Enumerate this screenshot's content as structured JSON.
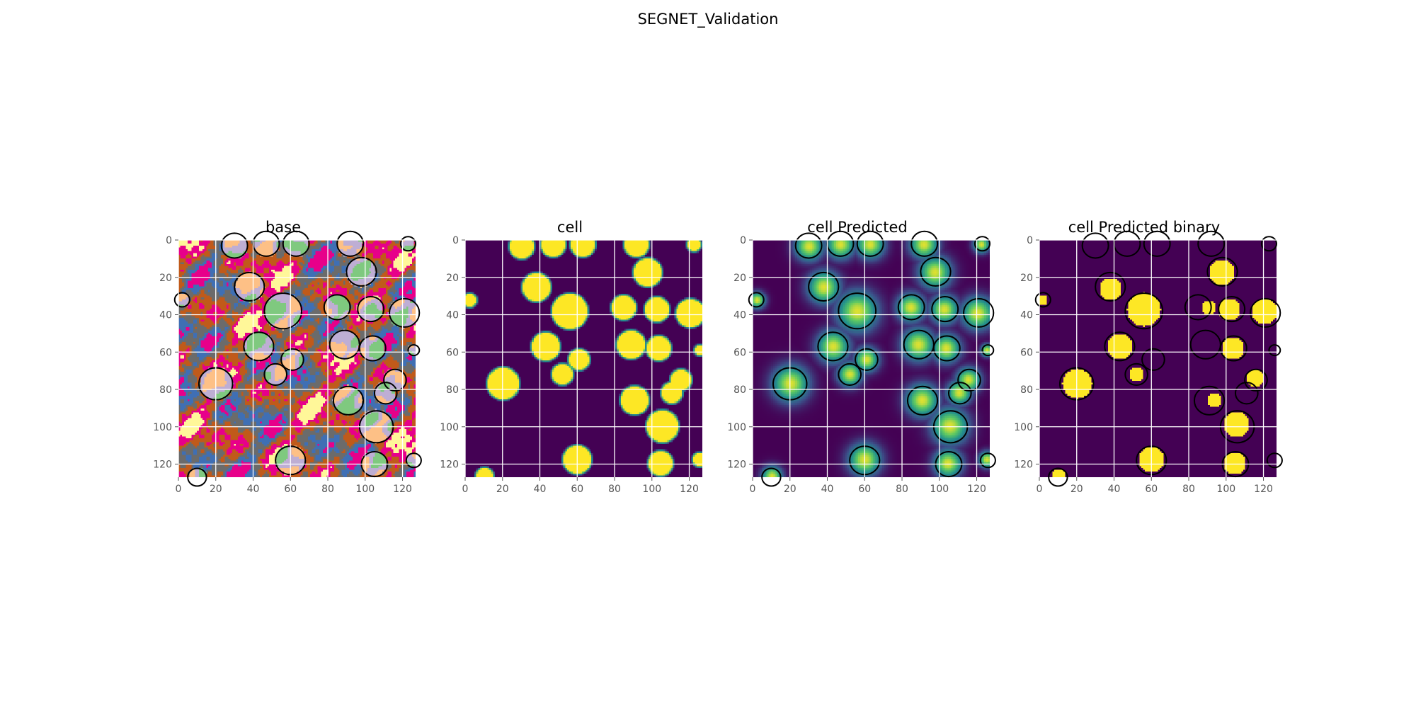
{
  "figure": {
    "title": "SEGNET_Validation"
  },
  "chart_data": [
    {
      "type": "heatmap",
      "title": "base",
      "colormap": "categorical",
      "xlim": [
        0,
        127
      ],
      "ylim": [
        127,
        0
      ],
      "xticks": [
        0,
        20,
        40,
        60,
        80,
        100,
        120
      ],
      "yticks": [
        0,
        20,
        40,
        60,
        80,
        100,
        120
      ],
      "grid": true,
      "contours": true,
      "palette": [
        "#e7008a",
        "#c05a1a",
        "#6b6b6b",
        "#3f6fb4",
        "#fff799",
        "#fdc086",
        "#beaed4",
        "#7fc97f"
      ]
    },
    {
      "type": "heatmap",
      "title": "cell",
      "colormap": "viridis",
      "xlim": [
        0,
        127
      ],
      "ylim": [
        127,
        0
      ],
      "xticks": [
        0,
        20,
        40,
        60,
        80,
        100,
        120
      ],
      "yticks": [
        0,
        20,
        40,
        60,
        80,
        100,
        120
      ],
      "grid": true,
      "contours": false
    },
    {
      "type": "heatmap",
      "title": "cell Predicted",
      "colormap": "viridis",
      "xlim": [
        0,
        127
      ],
      "ylim": [
        127,
        0
      ],
      "xticks": [
        0,
        20,
        40,
        60,
        80,
        100,
        120
      ],
      "yticks": [
        0,
        20,
        40,
        60,
        80,
        100,
        120
      ],
      "grid": true,
      "contours": true
    },
    {
      "type": "heatmap",
      "title": "cell Predicted binary",
      "colormap": "viridis",
      "xlim": [
        0,
        127
      ],
      "ylim": [
        127,
        0
      ],
      "xticks": [
        0,
        20,
        40,
        60,
        80,
        100,
        120
      ],
      "yticks": [
        0,
        20,
        40,
        60,
        80,
        100,
        120
      ],
      "grid": true,
      "contours": true
    }
  ]
}
